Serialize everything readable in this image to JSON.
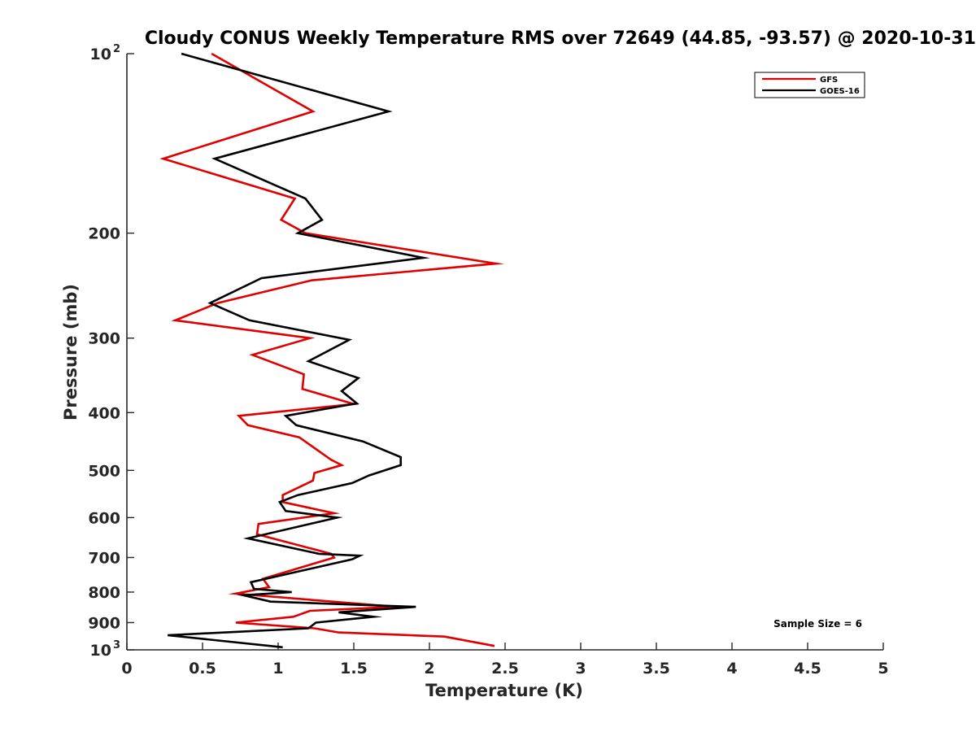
{
  "chart_data": {
    "type": "line",
    "title": "Cloudy CONUS Weekly Temperature RMS over 72649 (44.85, -93.57) @ 2020-10-31",
    "xlabel": "Temperature (K)",
    "ylabel": "Pressure (mb)",
    "xlim": [
      0,
      5
    ],
    "ylim": [
      100,
      1000
    ],
    "y_scale": "log",
    "y_reversed": true,
    "grid": false,
    "legend_position": "top-right",
    "x_ticks": [
      "0",
      "0.5",
      "1",
      "1.5",
      "2",
      "2.5",
      "3",
      "3.5",
      "4",
      "4.5",
      "5"
    ],
    "y_ticks": [
      {
        "value": 100,
        "base": "10",
        "exp": "2"
      },
      {
        "value": 200,
        "label": "200"
      },
      {
        "value": 300,
        "label": "300"
      },
      {
        "value": 400,
        "label": "400"
      },
      {
        "value": 500,
        "label": "500"
      },
      {
        "value": 600,
        "label": "600"
      },
      {
        "value": 700,
        "label": "700"
      },
      {
        "value": 800,
        "label": "800"
      },
      {
        "value": 900,
        "label": "900"
      },
      {
        "value": 1000,
        "base": "10",
        "exp": "3"
      }
    ],
    "series": [
      {
        "name": "GFS",
        "color": "#e00000",
        "points": [
          [
            0.56,
            100
          ],
          [
            1.23,
            125
          ],
          [
            0.24,
            150
          ],
          [
            1.11,
            175
          ],
          [
            1.02,
            190
          ],
          [
            1.18,
            200
          ],
          [
            2.44,
            225
          ],
          [
            1.22,
            240
          ],
          [
            0.6,
            262
          ],
          [
            0.32,
            280
          ],
          [
            1.21,
            300
          ],
          [
            0.83,
            320
          ],
          [
            1.17,
            345
          ],
          [
            1.16,
            365
          ],
          [
            1.5,
            387
          ],
          [
            0.74,
            405
          ],
          [
            0.8,
            420
          ],
          [
            1.14,
            440
          ],
          [
            1.35,
            480
          ],
          [
            1.42,
            490
          ],
          [
            1.24,
            505
          ],
          [
            1.23,
            520
          ],
          [
            1.03,
            550
          ],
          [
            1.03,
            565
          ],
          [
            1.37,
            590
          ],
          [
            0.87,
            615
          ],
          [
            0.86,
            640
          ],
          [
            1.35,
            690
          ],
          [
            1.37,
            700
          ],
          [
            0.9,
            760
          ],
          [
            0.94,
            785
          ],
          [
            0.72,
            805
          ],
          [
            1.78,
            847
          ],
          [
            1.21,
            860
          ],
          [
            1.1,
            880
          ],
          [
            0.72,
            900
          ],
          [
            1.24,
            920
          ],
          [
            1.4,
            935
          ],
          [
            2.1,
            950
          ],
          [
            2.43,
            985
          ]
        ]
      },
      {
        "name": "GOES-16",
        "color": "#000000",
        "points": [
          [
            0.36,
            100
          ],
          [
            1.73,
            125
          ],
          [
            0.58,
            150
          ],
          [
            1.18,
            175
          ],
          [
            1.29,
            190
          ],
          [
            1.13,
            200
          ],
          [
            1.96,
            220
          ],
          [
            0.89,
            238
          ],
          [
            0.55,
            262
          ],
          [
            0.81,
            280
          ],
          [
            1.47,
            302
          ],
          [
            1.2,
            328
          ],
          [
            1.53,
            350
          ],
          [
            1.42,
            368
          ],
          [
            1.52,
            386
          ],
          [
            1.05,
            405
          ],
          [
            1.12,
            420
          ],
          [
            1.56,
            447
          ],
          [
            1.81,
            475
          ],
          [
            1.81,
            490
          ],
          [
            1.6,
            510
          ],
          [
            1.49,
            525
          ],
          [
            1.13,
            550
          ],
          [
            1.01,
            565
          ],
          [
            1.05,
            585
          ],
          [
            1.39,
            600
          ],
          [
            0.8,
            650
          ],
          [
            1.27,
            690
          ],
          [
            1.54,
            695
          ],
          [
            1.49,
            705
          ],
          [
            0.82,
            770
          ],
          [
            0.84,
            790
          ],
          [
            1.09,
            800
          ],
          [
            0.77,
            810
          ],
          [
            0.95,
            830
          ],
          [
            1.91,
            847
          ],
          [
            1.4,
            865
          ],
          [
            1.63,
            880
          ],
          [
            1.25,
            900
          ],
          [
            1.2,
            920
          ],
          [
            0.27,
            945
          ],
          [
            1.03,
            990
          ]
        ]
      }
    ],
    "annotations": [
      {
        "text": "Sample Size = 6",
        "position": "bottom-right"
      }
    ]
  }
}
